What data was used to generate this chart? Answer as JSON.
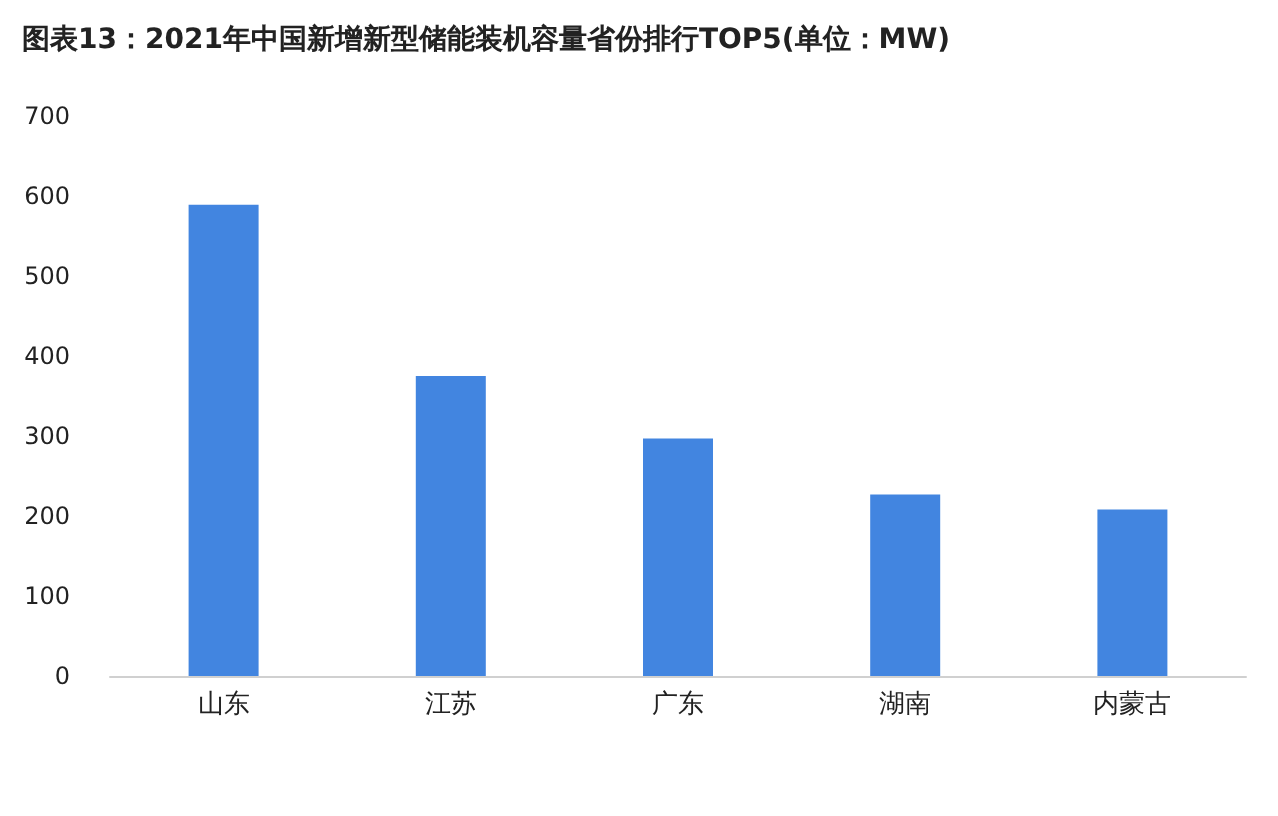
{
  "chart_data": {
    "type": "bar",
    "title": "图表13：2021年中国新增新型储能装机容量省份排行TOP5(单位：MW)",
    "categories": [
      "山东",
      "江苏",
      "广东",
      "湖南",
      "内蒙古"
    ],
    "values": [
      589,
      375,
      297,
      227,
      208
    ],
    "color": "#4285e0",
    "ylim": [
      0,
      700
    ],
    "yticks": [
      0,
      100,
      200,
      300,
      400,
      500,
      600,
      700
    ],
    "grid": false
  }
}
